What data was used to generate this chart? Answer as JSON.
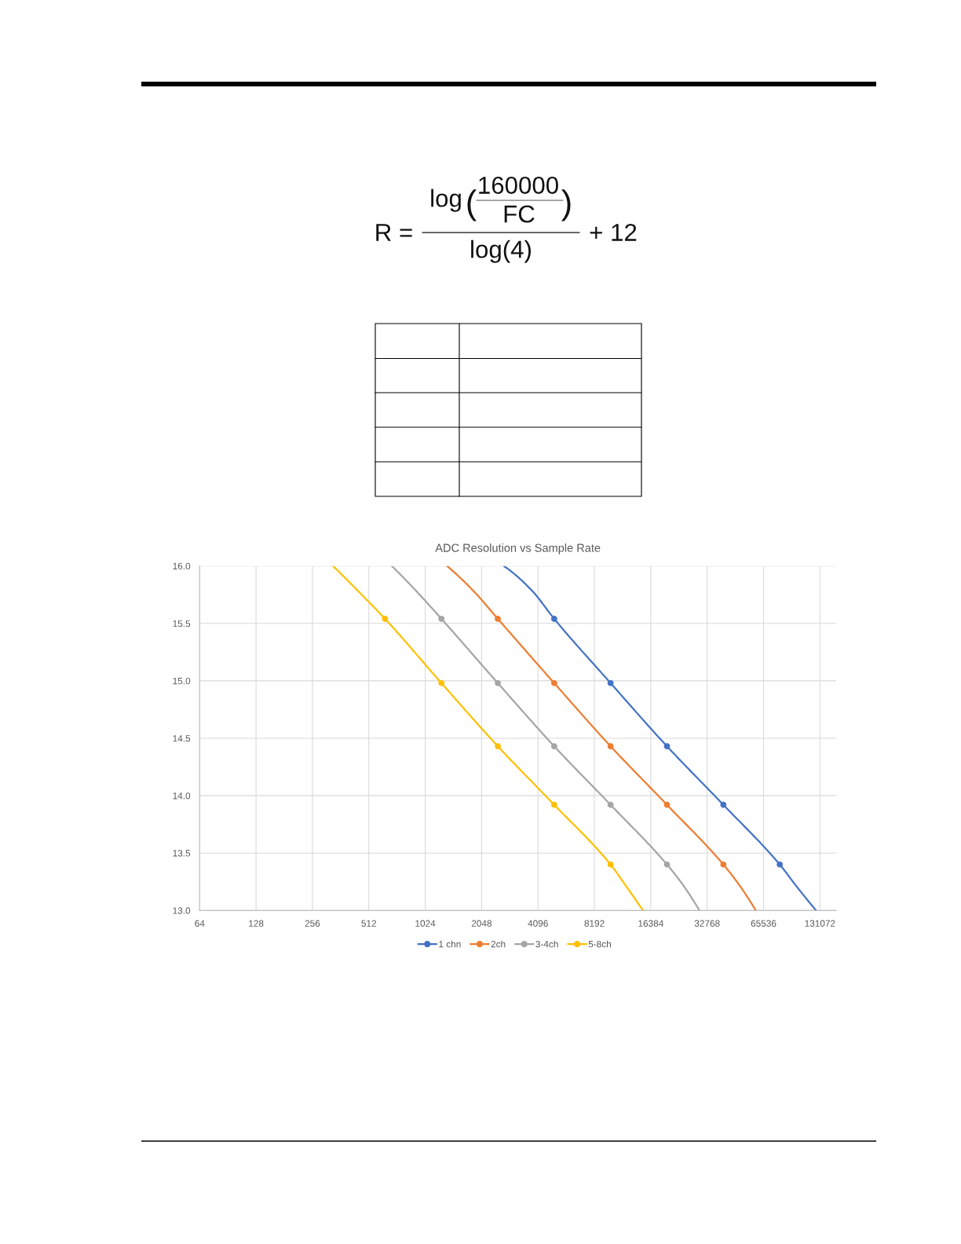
{
  "chart_data": {
    "type": "line",
    "title": "ADC Resolution vs Sample Rate",
    "annotations": [
      "R =",
      "log",
      "(",
      "160000",
      "FC",
      ")",
      "log(4)",
      "+ 12"
    ],
    "series": [
      {
        "name": "1 chn",
        "color": "#4472c4",
        "marker": "none",
        "x": [
          2690,
          3830,
          5000,
          10000,
          20000,
          40000,
          80000,
          97200,
          125000
        ],
        "values": [
          16.0,
          15.78,
          15.54,
          14.98,
          14.43,
          13.92,
          13.4,
          13.22,
          13.0
        ]
      },
      {
        "type": "scatter",
        "color": "#4472c4",
        "x": [
          5000,
          10000,
          20000,
          40000,
          80000
        ],
        "values": [
          15.54,
          14.98,
          14.43,
          13.92,
          13.4
        ]
      },
      {
        "name": "2ch",
        "color": "#ed7d31",
        "marker": "none",
        "x": [
          1340,
          1860,
          2500,
          5000,
          10000,
          20000,
          40000,
          48700,
          59600
        ],
        "values": [
          16.0,
          15.78,
          15.54,
          14.98,
          14.43,
          13.92,
          13.4,
          13.22,
          13.0
        ]
      },
      {
        "type": "scatter",
        "color": "#ed7d31",
        "x": [
          2500,
          5000,
          10000,
          20000,
          40000
        ],
        "values": [
          15.54,
          14.98,
          14.43,
          13.92,
          13.4
        ]
      },
      {
        "name": "3-4ch",
        "color": "#a5a5a5",
        "marker": "none",
        "x": [
          680,
          920,
          1250,
          2500,
          5000,
          10000,
          20000,
          24400,
          29800
        ],
        "values": [
          16.0,
          15.78,
          15.54,
          14.98,
          14.43,
          13.92,
          13.4,
          13.22,
          13.0
        ]
      },
      {
        "type": "scatter",
        "color": "#a5a5a5",
        "x": [
          1250,
          2500,
          5000,
          10000,
          20000
        ],
        "values": [
          15.54,
          14.98,
          14.43,
          13.92,
          13.4
        ]
      },
      {
        "name": "5-8ch",
        "color": "#ffc000",
        "marker": "none",
        "x": [
          330,
          450,
          625,
          1250,
          2500,
          5000,
          10000,
          12000,
          14900
        ],
        "values": [
          16.0,
          15.78,
          15.54,
          14.98,
          14.43,
          13.92,
          13.4,
          13.22,
          13.0
        ]
      },
      {
        "type": "scatter",
        "color": "#ffc000",
        "x": [
          625,
          1250,
          2500,
          5000,
          10000
        ],
        "values": [
          15.54,
          14.98,
          14.43,
          13.92,
          13.4
        ]
      }
    ],
    "xlim": [
      64,
      160000
    ],
    "xticks": [
      64,
      128,
      256,
      512,
      1024,
      2048,
      4096,
      8192,
      16384,
      32768,
      65536,
      131072
    ],
    "ylim": [
      13,
      16
    ],
    "yticks": [
      {
        "value": 13,
        "label": "13.0"
      },
      {
        "value": 13.5,
        "label": "13.5"
      },
      {
        "value": 14,
        "label": "14.0"
      },
      {
        "value": 14.5,
        "label": "14.5"
      },
      {
        "value": 15,
        "label": "15.0"
      },
      {
        "value": 15.5,
        "label": "15.5"
      },
      {
        "value": 16,
        "label": "16.0"
      }
    ],
    "log": "x",
    "grid": true,
    "legend": "bottom",
    "marker": "circle",
    "line_style": "solid"
  }
}
